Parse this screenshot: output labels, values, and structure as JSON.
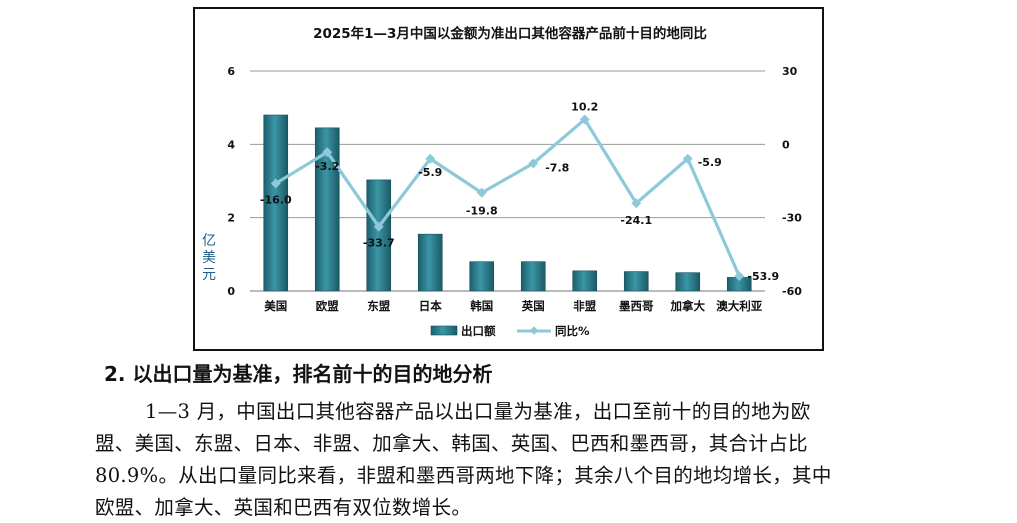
{
  "chart_data": {
    "type": "bar",
    "title": "2025年1—3月中国以金额为准出口其他容器产品前十目的地同比",
    "ylabel": "亿美元",
    "ylim": [
      0,
      6
    ],
    "y2lim": [
      -60,
      30
    ],
    "yticks": [
      "0",
      "2",
      "4",
      "6"
    ],
    "y2ticks": [
      "-60",
      "-30",
      "0",
      "30"
    ],
    "legend_position": "bottom",
    "categories": [
      "美国",
      "欧盟",
      "东盟",
      "日本",
      "韩国",
      "英国",
      "非盟",
      "墨西哥",
      "加拿大",
      "澳大利亚"
    ],
    "series": [
      {
        "name": "出口额",
        "type": "bar",
        "axis": "left",
        "color": "#2e7f8f",
        "values": [
          4.8,
          4.45,
          3.03,
          1.55,
          0.8,
          0.8,
          0.55,
          0.53,
          0.5,
          0.37
        ]
      },
      {
        "name": "同比%",
        "type": "line",
        "axis": "right",
        "color": "#8ec9d9",
        "values": [
          -16.0,
          -3.2,
          -33.7,
          -5.9,
          -19.8,
          -7.8,
          10.2,
          -24.1,
          -5.9,
          -53.9
        ],
        "labels": [
          "-16.0",
          "-3.2",
          "-33.7",
          "-5.9",
          "-19.8",
          "-7.8",
          "10.2",
          "-24.1",
          "-5.9",
          "-53.9"
        ]
      }
    ],
    "grid": true
  },
  "section": {
    "heading": "2. 以出口量为基准，排名前十的目的地分析",
    "lines": [
      "1—3 月，中国出口其他容器产品以出口量为基准，出口至前十的目的地为欧",
      "盟、美国、东盟、日本、非盟、加拿大、韩国、英国、巴西和墨西哥，其合计占比",
      "80.9%。从出口量同比来看，非盟和墨西哥两地下降；其余八个目的地均增长，其中",
      "欧盟、加拿大、英国和巴西有双位数增长。"
    ]
  }
}
